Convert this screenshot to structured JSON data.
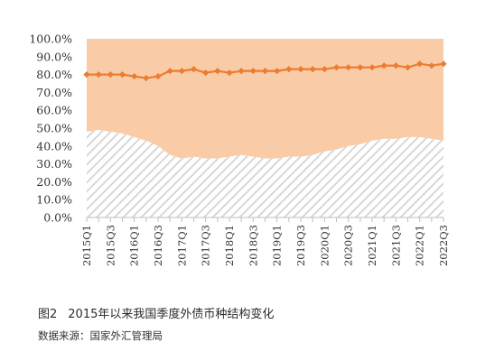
{
  "figure": {
    "number": "图2",
    "title": "2015年以来我国季度外债币种结构变化",
    "source": "数据来源：国家外汇管理局"
  },
  "colors": {
    "upper_area": "#f9cba7",
    "lower_hatch_line": "#d3d3d3",
    "line": "#ec7c30",
    "axis": "#bfbfbf"
  },
  "chart_data": {
    "type": "area",
    "title": "",
    "xlabel": "",
    "ylabel": "",
    "ylim": [
      0,
      100
    ],
    "y_unit": "%",
    "y_ticks": [
      "0.0%",
      "10.0%",
      "20.0%",
      "30.0%",
      "40.0%",
      "50.0%",
      "60.0%",
      "70.0%",
      "80.0%",
      "90.0%",
      "100.0%"
    ],
    "grid": false,
    "legend": "none",
    "categories": [
      "2015Q1",
      "2015Q2",
      "2015Q3",
      "2015Q4",
      "2016Q1",
      "2016Q2",
      "2016Q3",
      "2016Q4",
      "2017Q1",
      "2017Q2",
      "2017Q3",
      "2017Q4",
      "2018Q1",
      "2018Q2",
      "2018Q3",
      "2018Q4",
      "2019Q1",
      "2019Q2",
      "2019Q3",
      "2019Q4",
      "2020Q1",
      "2020Q2",
      "2020Q3",
      "2020Q4",
      "2021Q1",
      "2021Q2",
      "2021Q3",
      "2021Q4",
      "2022Q1",
      "2022Q2",
      "2022Q3"
    ],
    "x_tick_labels": [
      "2015Q1",
      "2015Q3",
      "2016Q1",
      "2016Q3",
      "2017Q1",
      "2017Q3",
      "2018Q1",
      "2018Q3",
      "2019Q1",
      "2019Q3",
      "2020Q1",
      "2020Q3",
      "2021Q1",
      "2021Q3",
      "2022Q1",
      "2022Q3"
    ],
    "series": [
      {
        "kind": "area-hatched",
        "values": [
          48,
          49,
          48,
          47,
          45,
          43,
          40,
          35,
          33,
          34,
          33,
          33,
          34,
          35,
          34,
          33,
          33,
          34,
          34,
          35,
          37,
          38,
          40,
          41,
          43,
          44,
          44,
          45,
          45,
          44,
          43
        ]
      },
      {
        "kind": "area-filled-stack-top",
        "values": [
          52,
          51,
          52,
          53,
          55,
          57,
          60,
          65,
          67,
          66,
          67,
          67,
          66,
          65,
          66,
          67,
          67,
          66,
          66,
          65,
          63,
          62,
          60,
          59,
          57,
          56,
          56,
          55,
          55,
          56,
          57
        ]
      },
      {
        "kind": "line-markers",
        "values": [
          80,
          80,
          80,
          80,
          79,
          78,
          79,
          82,
          82,
          83,
          81,
          82,
          81,
          82,
          82,
          82,
          82,
          83,
          83,
          83,
          83,
          84,
          84,
          84,
          84,
          85,
          85,
          84,
          86,
          85,
          86
        ]
      }
    ]
  }
}
